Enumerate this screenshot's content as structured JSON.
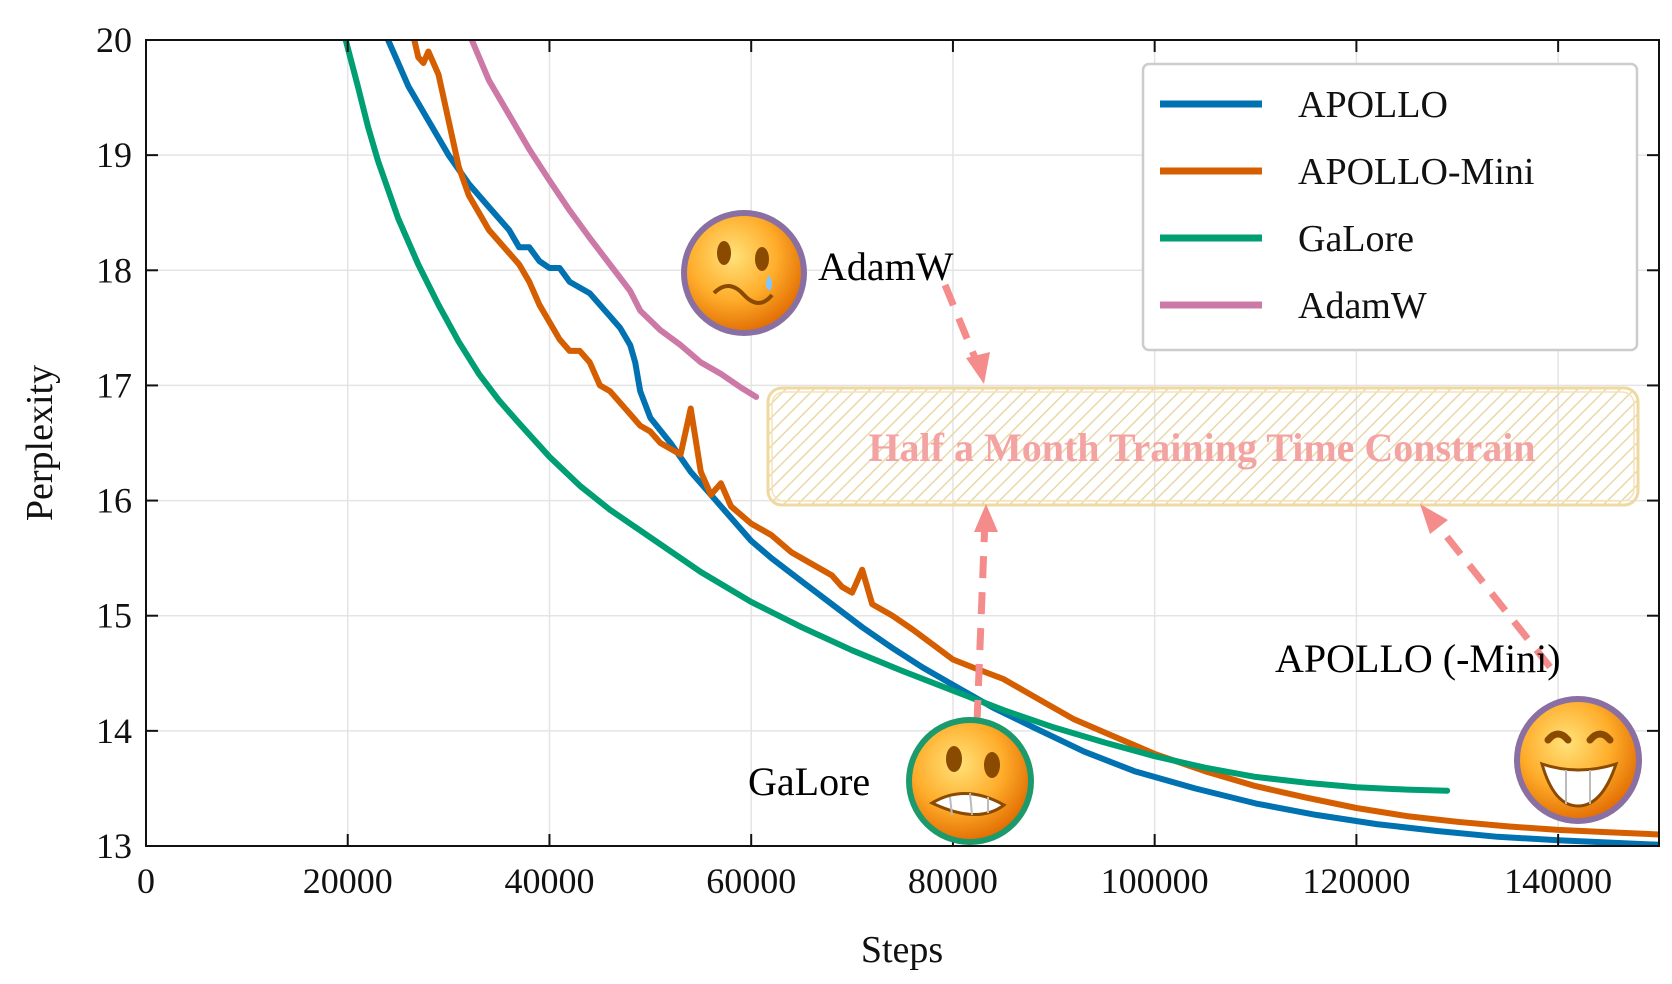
{
  "chart_data": {
    "type": "line",
    "xlabel": "Steps",
    "ylabel": "Perplexity",
    "xlim": [
      0,
      150000
    ],
    "ylim": [
      13,
      20
    ],
    "xticks": [
      0,
      20000,
      40000,
      60000,
      80000,
      100000,
      120000,
      140000
    ],
    "yticks": [
      13,
      14,
      15,
      16,
      17,
      18,
      19,
      20
    ],
    "grid": true,
    "legend_position": "top-right",
    "series": [
      {
        "name": "APOLLO",
        "color": "#0072B2",
        "x": [
          24000,
          25000,
          26000,
          28000,
          30000,
          32000,
          34000,
          36000,
          37000,
          38000,
          39000,
          40000,
          41000,
          42000,
          44000,
          46000,
          47000,
          48000,
          48500,
          49000,
          50000,
          52000,
          54000,
          56000,
          58000,
          60000,
          62000,
          65000,
          68000,
          71000,
          74000,
          77000,
          80000,
          84000,
          88000,
          93000,
          98000,
          104000,
          110000,
          116000,
          122000,
          128000,
          134000,
          140000,
          150000
        ],
        "y": [
          20.0,
          19.8,
          19.6,
          19.3,
          19.0,
          18.75,
          18.55,
          18.35,
          18.2,
          18.2,
          18.08,
          18.02,
          18.02,
          17.9,
          17.8,
          17.6,
          17.5,
          17.35,
          17.2,
          16.95,
          16.72,
          16.5,
          16.25,
          16.05,
          15.85,
          15.65,
          15.5,
          15.3,
          15.1,
          14.9,
          14.72,
          14.55,
          14.4,
          14.2,
          14.03,
          13.82,
          13.65,
          13.5,
          13.37,
          13.27,
          13.19,
          13.13,
          13.08,
          13.05,
          13.01
        ]
      },
      {
        "name": "APOLLO-Mini",
        "color": "#D55E00",
        "x": [
          26600,
          27000,
          27500,
          28000,
          29000,
          30000,
          31000,
          32000,
          33000,
          34000,
          35000,
          36000,
          37000,
          38000,
          39000,
          40000,
          41000,
          42000,
          43000,
          44000,
          45000,
          46000,
          47000,
          48000,
          49000,
          50000,
          51000,
          52000,
          53000,
          54000,
          55000,
          56000,
          57000,
          58000,
          60000,
          62000,
          64000,
          66000,
          68000,
          69000,
          70000,
          71000,
          72000,
          74000,
          76000,
          78000,
          80000,
          82000,
          85000,
          88000,
          92000,
          96000,
          100000,
          105000,
          110000,
          115000,
          120000,
          125000,
          130000,
          135000,
          140000,
          145000,
          150000
        ],
        "y": [
          20.0,
          19.85,
          19.8,
          19.9,
          19.7,
          19.3,
          18.9,
          18.65,
          18.5,
          18.35,
          18.25,
          18.15,
          18.05,
          17.9,
          17.7,
          17.55,
          17.4,
          17.3,
          17.3,
          17.2,
          17.0,
          16.95,
          16.85,
          16.75,
          16.65,
          16.6,
          16.5,
          16.45,
          16.4,
          16.8,
          16.25,
          16.05,
          16.15,
          15.95,
          15.8,
          15.7,
          15.55,
          15.45,
          15.35,
          15.25,
          15.2,
          15.4,
          15.1,
          15.0,
          14.88,
          14.75,
          14.62,
          14.55,
          14.45,
          14.3,
          14.1,
          13.95,
          13.8,
          13.65,
          13.52,
          13.42,
          13.33,
          13.26,
          13.21,
          13.17,
          13.14,
          13.12,
          13.1
        ]
      },
      {
        "name": "GaLore",
        "color": "#009E73",
        "x": [
          19800,
          21000,
          22000,
          23000,
          25000,
          27000,
          29000,
          31000,
          33000,
          35000,
          37000,
          40000,
          43000,
          46000,
          50000,
          55000,
          60000,
          65000,
          70000,
          75000,
          80000,
          85000,
          90000,
          95000,
          100000,
          105000,
          110000,
          115000,
          120000,
          125000,
          129000
        ],
        "y": [
          20.0,
          19.6,
          19.25,
          18.95,
          18.45,
          18.05,
          17.7,
          17.38,
          17.1,
          16.87,
          16.67,
          16.38,
          16.13,
          15.92,
          15.68,
          15.38,
          15.12,
          14.9,
          14.7,
          14.52,
          14.35,
          14.18,
          14.03,
          13.9,
          13.78,
          13.68,
          13.6,
          13.55,
          13.51,
          13.49,
          13.48
        ]
      },
      {
        "name": "AdamW",
        "color": "#CC79A7",
        "x": [
          32300,
          34000,
          36000,
          38000,
          40000,
          42000,
          44000,
          46000,
          48000,
          49000,
          51000,
          53000,
          55000,
          57000,
          59000,
          60500
        ],
        "y": [
          20.0,
          19.65,
          19.35,
          19.05,
          18.78,
          18.52,
          18.28,
          18.05,
          17.82,
          17.65,
          17.48,
          17.35,
          17.2,
          17.1,
          16.98,
          16.9
        ]
      }
    ],
    "annotations": [
      {
        "id": "adamw",
        "text": "AdamW"
      },
      {
        "id": "galore",
        "text": "GaLore"
      },
      {
        "id": "apollo",
        "text": "APOLLO (-Mini)"
      },
      {
        "id": "constraint",
        "text": "Half a Month Training Time Constrain"
      }
    ]
  }
}
